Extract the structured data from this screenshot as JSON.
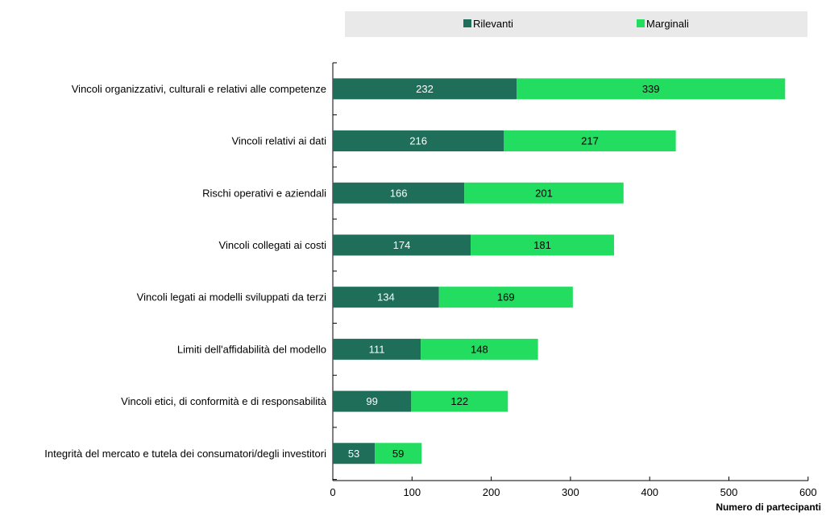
{
  "chart_data": {
    "type": "bar",
    "orientation": "horizontal",
    "stacked": true,
    "categories": [
      "Vincoli organizzativi, culturali e relativi alle competenze",
      "Vincoli relativi ai dati",
      "Rischi operativi e aziendali",
      "Vincoli collegati ai costi",
      "Vincoli legati ai modelli sviluppati da terzi",
      "Limiti dell'affidabilità del modello",
      "Vincoli etici, di conformità e di responsabilità",
      "Integrità del mercato e tutela dei consumatori/degli investitori"
    ],
    "series": [
      {
        "name": "Rilevanti",
        "color": "#1e6e5a",
        "label_color": "#ffffff",
        "values": [
          232,
          216,
          166,
          174,
          134,
          111,
          99,
          53
        ]
      },
      {
        "name": "Marginali",
        "color": "#22dd5f",
        "label_color": "#000000",
        "values": [
          339,
          217,
          201,
          181,
          169,
          148,
          122,
          59
        ]
      }
    ],
    "xlabel": "Numero di partecipanti",
    "xlim": [
      0,
      600
    ],
    "xticks": [
      0,
      100,
      200,
      300,
      400,
      500,
      600
    ],
    "grid": false,
    "legend_position": "top",
    "legend_background": "#e9e9e9"
  }
}
